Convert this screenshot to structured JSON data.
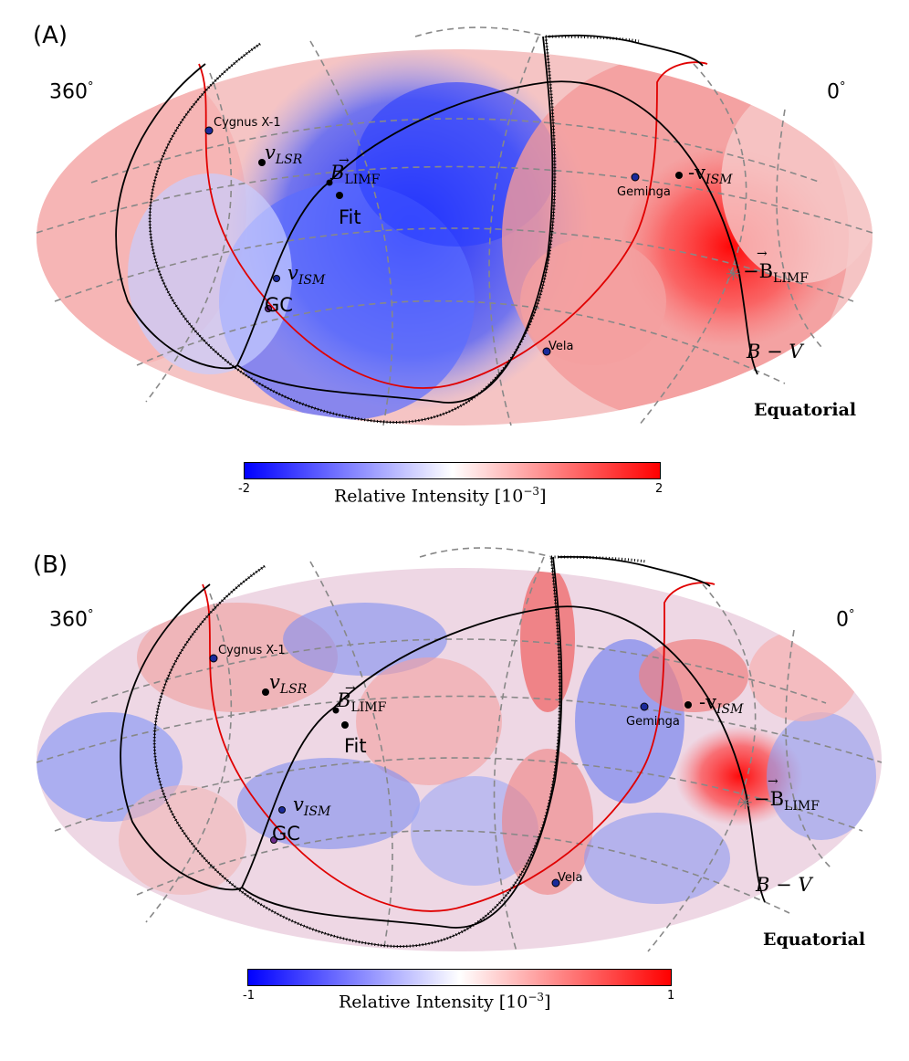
{
  "panels": [
    {
      "id": "A",
      "label": "(A)",
      "ra_left": "360",
      "ra_right": "0",
      "degree": "°",
      "coord_system": "Equatorial",
      "colorbar": {
        "min": "-2",
        "max": "2",
        "title": "Relative Intensity [10",
        "exponent": "−3",
        "close": "]",
        "colors": [
          "#0000ff",
          "#ffffff",
          "#ff0000"
        ]
      },
      "sources": {
        "cygnus": "Cygnus X-1",
        "geminga": "Geminga",
        "vela": "Vela",
        "gc": "GC",
        "fit": "Fit"
      },
      "vectors": {
        "v": "v",
        "lsr": "LSR",
        "ism": "ISM",
        "neg_v": "-v",
        "B": "B",
        "limf": "LIMF",
        "neg_B": "−B",
        "bv": "B − V"
      }
    },
    {
      "id": "B",
      "label": "(B)",
      "ra_left": "360",
      "ra_right": "0",
      "degree": "°",
      "coord_system": "Equatorial",
      "colorbar": {
        "min": "-1",
        "max": "1",
        "title": "Relative Intensity [10",
        "exponent": "−3",
        "close": "]",
        "colors": [
          "#0000ff",
          "#ffffff",
          "#ff0000"
        ]
      },
      "sources": {
        "cygnus": "Cygnus X-1",
        "geminga": "Geminga",
        "vela": "Vela",
        "gc": "GC",
        "fit": "Fit"
      },
      "vectors": {
        "v": "v",
        "lsr": "LSR",
        "ism": "ISM",
        "neg_v": "-v",
        "B": "B",
        "limf": "LIMF",
        "neg_B": "−B",
        "bv": "B − V"
      }
    }
  ]
}
